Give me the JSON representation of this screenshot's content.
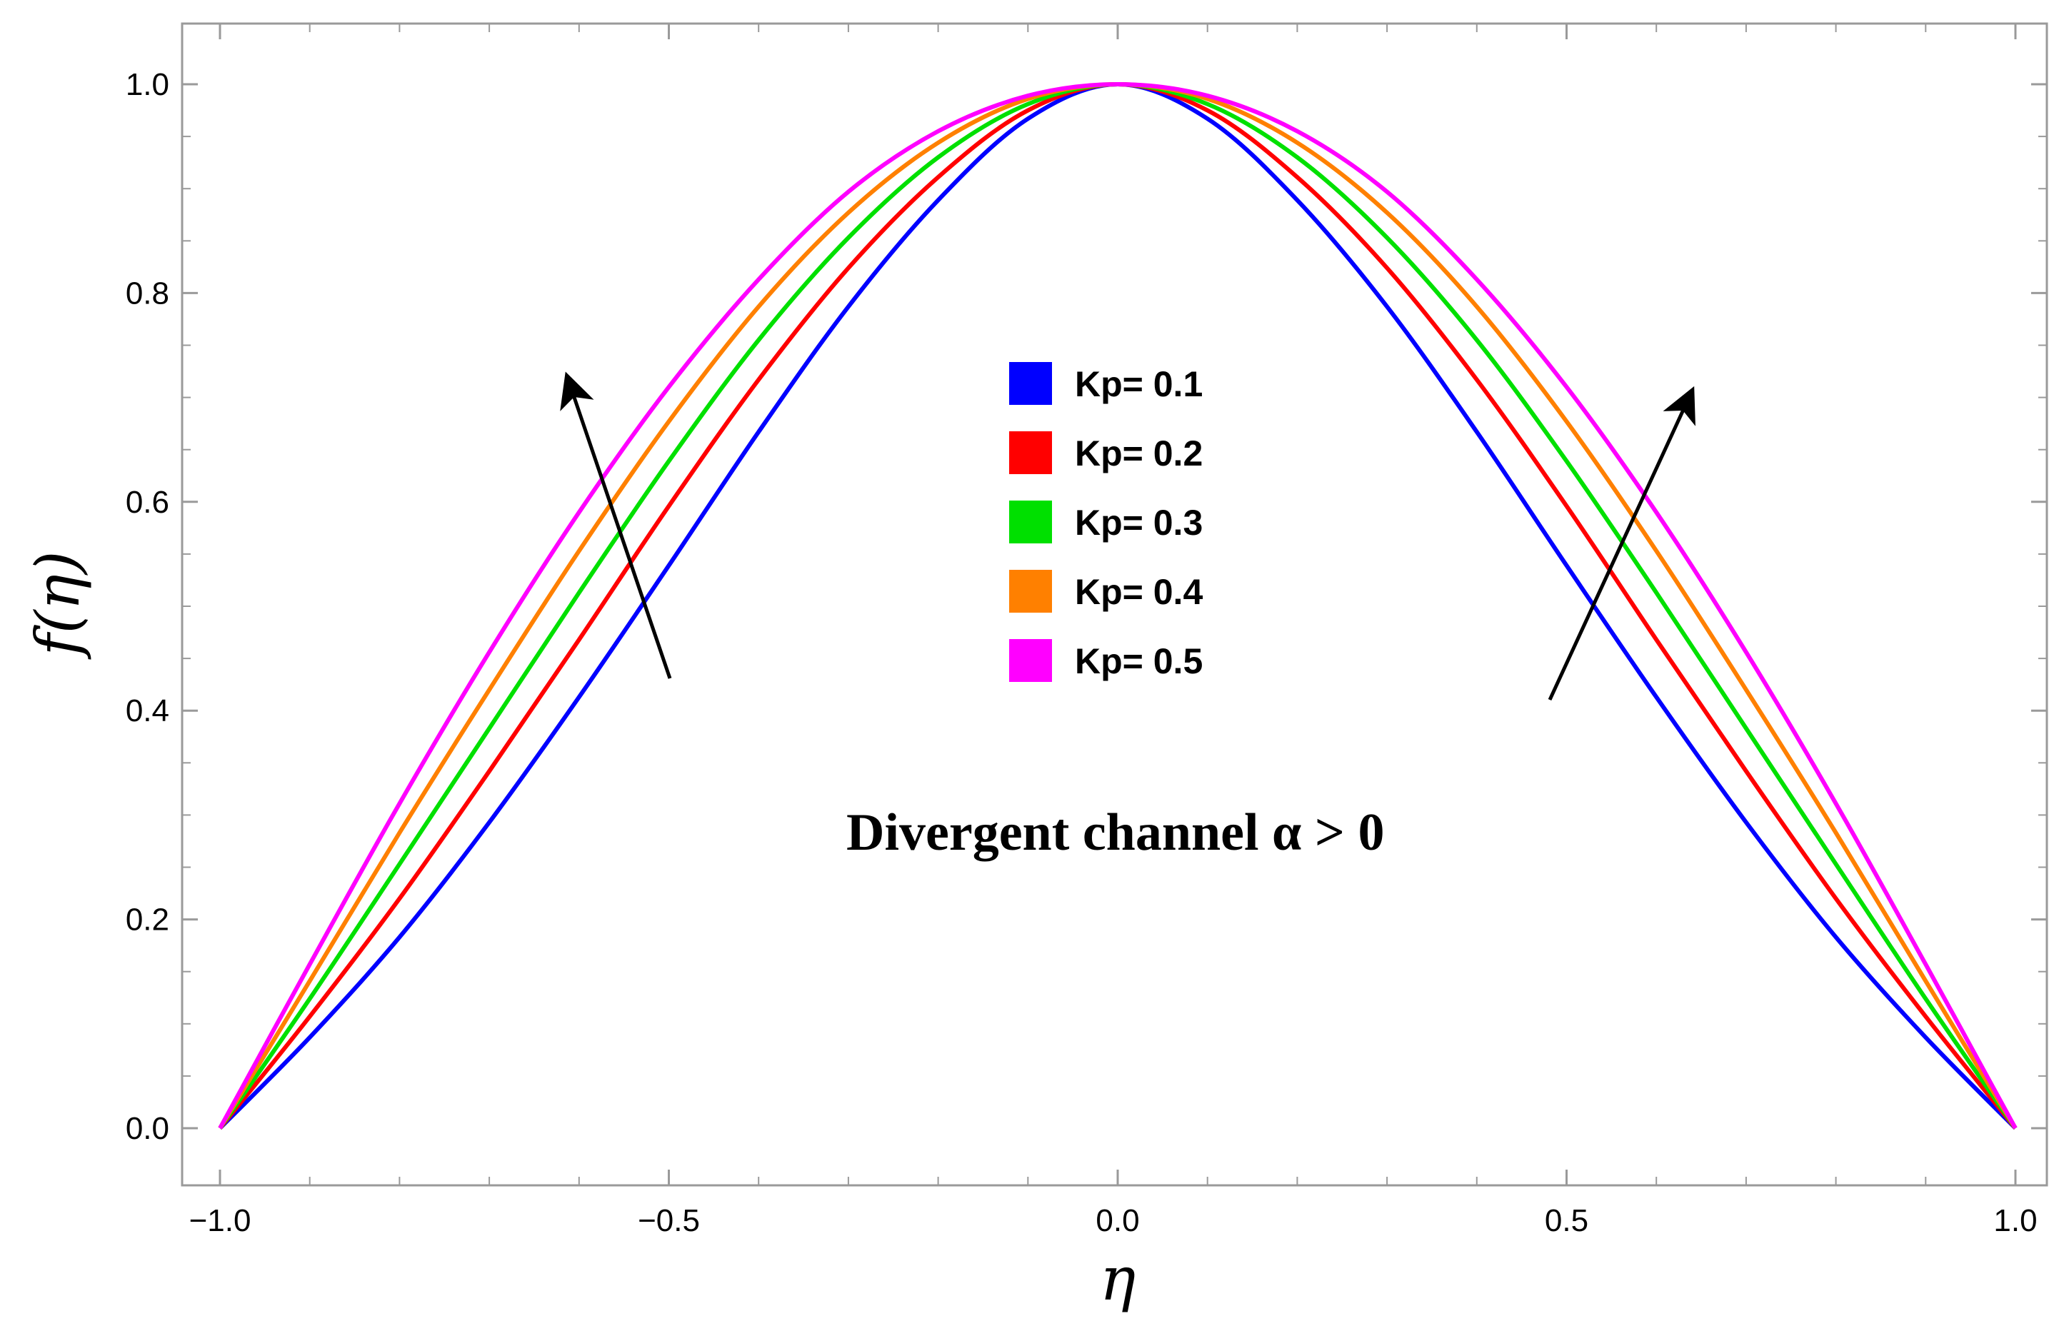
{
  "chart_data": {
    "type": "line",
    "xlabel": "η",
    "ylabel": "f(η)",
    "xlim": [
      -1.05,
      1.05
    ],
    "ylim": [
      -0.05,
      1.06
    ],
    "x_ticks": [
      -1.0,
      -0.5,
      0.0,
      0.5,
      1.0
    ],
    "x_tick_labels": [
      "−1.0",
      "−0.5",
      "0.0",
      "0.5",
      "1.0"
    ],
    "y_ticks": [
      0.0,
      0.2,
      0.4,
      0.6,
      0.8,
      1.0
    ],
    "y_tick_labels": [
      "0.0",
      "0.2",
      "0.4",
      "0.6",
      "0.8",
      "1.0"
    ],
    "grid": false,
    "legend_placement": "center",
    "annotation": "Divergent channel α  >  0",
    "x": [
      -1.0,
      -0.9,
      -0.8,
      -0.7,
      -0.6,
      -0.5,
      -0.4,
      -0.3,
      -0.2,
      -0.1,
      0.0,
      0.1,
      0.2,
      0.3,
      0.4,
      0.5,
      0.6,
      0.7,
      0.8,
      0.9,
      1.0
    ],
    "series": [
      {
        "name": "Kp= 0.1",
        "color": "#0000ff",
        "values": [
          0.0,
          0.087,
          0.183,
          0.293,
          0.413,
          0.539,
          0.667,
          0.787,
          0.889,
          0.967,
          1.0,
          0.967,
          0.889,
          0.787,
          0.667,
          0.539,
          0.413,
          0.293,
          0.183,
          0.087,
          0.0
        ]
      },
      {
        "name": "Kp= 0.2",
        "color": "#ff0000",
        "values": [
          0.0,
          0.107,
          0.22,
          0.342,
          0.468,
          0.596,
          0.717,
          0.824,
          0.911,
          0.975,
          1.0,
          0.975,
          0.911,
          0.824,
          0.717,
          0.596,
          0.468,
          0.342,
          0.22,
          0.107,
          0.0
        ]
      },
      {
        "name": "Kp= 0.3",
        "color": "#00e000",
        "values": [
          0.0,
          0.124,
          0.253,
          0.383,
          0.513,
          0.639,
          0.755,
          0.853,
          0.93,
          0.981,
          1.0,
          0.981,
          0.93,
          0.853,
          0.755,
          0.639,
          0.513,
          0.383,
          0.253,
          0.124,
          0.0
        ]
      },
      {
        "name": "Kp= 0.4",
        "color": "#ff8000",
        "values": [
          0.0,
          0.141,
          0.283,
          0.42,
          0.553,
          0.677,
          0.787,
          0.877,
          0.944,
          0.986,
          1.0,
          0.986,
          0.944,
          0.877,
          0.787,
          0.677,
          0.553,
          0.42,
          0.283,
          0.141,
          0.0
        ]
      },
      {
        "name": "Kp= 0.5",
        "color": "#ff00ff",
        "values": [
          0.0,
          0.157,
          0.311,
          0.456,
          0.59,
          0.71,
          0.813,
          0.897,
          0.955,
          0.989,
          1.0,
          0.989,
          0.955,
          0.897,
          0.813,
          0.71,
          0.59,
          0.456,
          0.311,
          0.157,
          0.0
        ]
      }
    ]
  }
}
